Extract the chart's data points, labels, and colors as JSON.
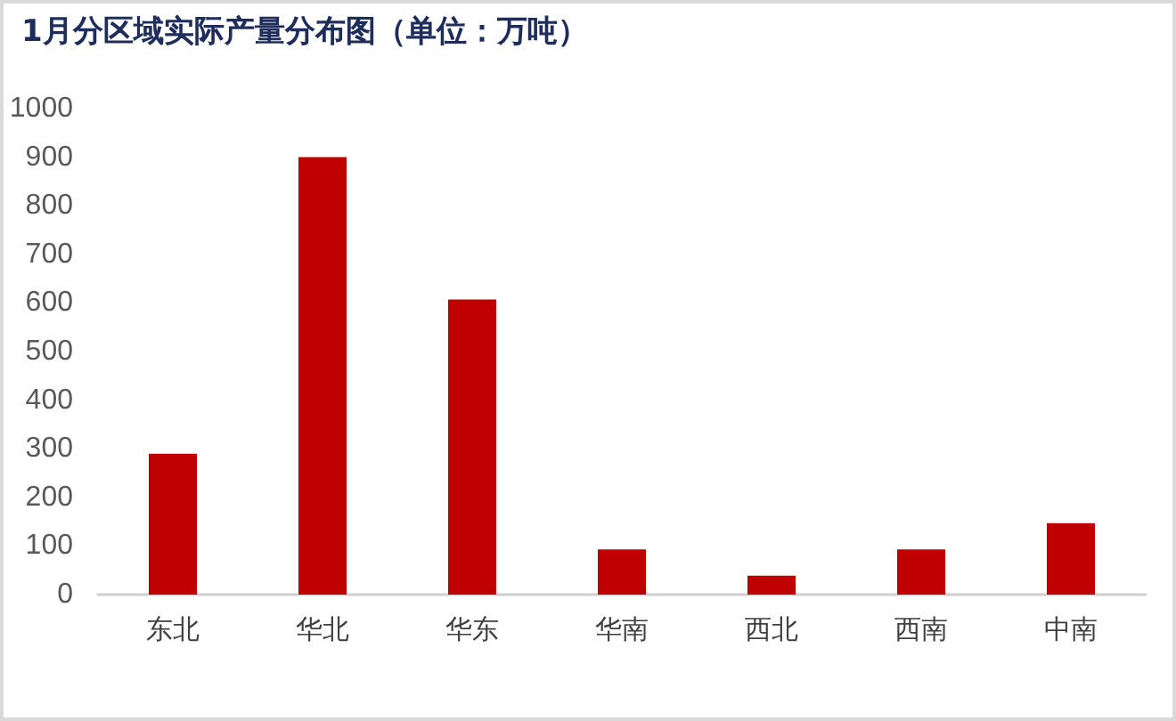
{
  "chart_data": {
    "type": "bar",
    "title": "1月分区域实际产量分布图（单位：万吨）",
    "categories": [
      "东北",
      "华北",
      "华东",
      "华南",
      "西北",
      "西南",
      "中南"
    ],
    "values": [
      290,
      900,
      607,
      93,
      39,
      93,
      147
    ],
    "color": "#c00000",
    "ylim": [
      0,
      1000
    ],
    "yticks": [
      0,
      100,
      200,
      300,
      400,
      500,
      600,
      700,
      800,
      900,
      1000
    ],
    "grid": false
  }
}
